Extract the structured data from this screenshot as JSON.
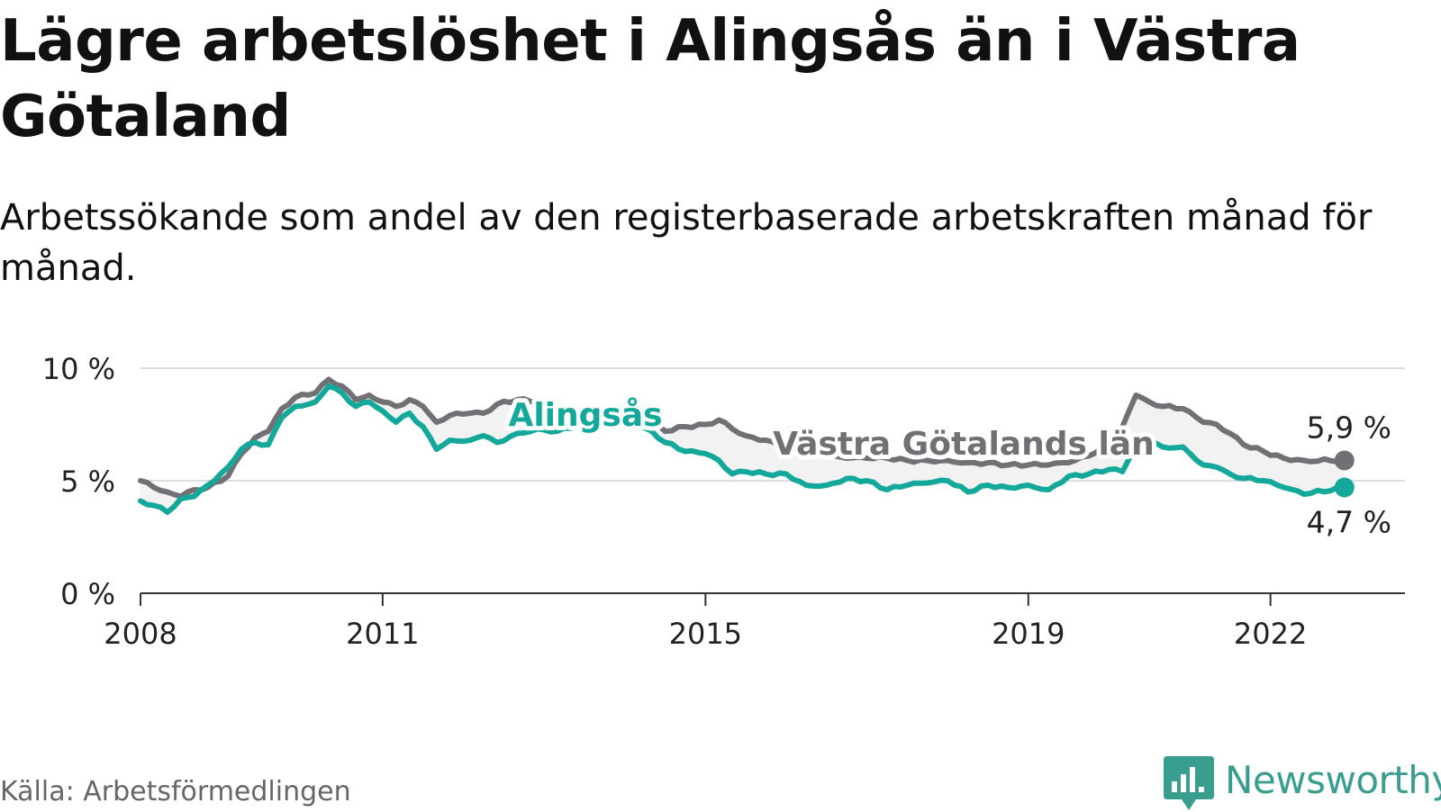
{
  "page": {
    "title": "Lägre arbetslöshet i Alingsås än i Västra Götaland",
    "subtitle": "Arbetssökande som andel av den registerbaserade arbetskraften månad för månad.",
    "source": "Källa: Arbetsförmedlingen",
    "brand": "Newsworthy"
  },
  "colors": {
    "alingsas": "#14a89a",
    "vastra": "#707075",
    "grid": "#dddddd",
    "axis": "#333333",
    "band": "#f2f2f2",
    "brand": "#3a9e8f"
  },
  "icons": {
    "logo": "newsworthy-bar-chart-logo"
  },
  "chart_data": {
    "type": "line",
    "x_start": "2008-01",
    "x_end": "2022-12",
    "xlim": [
      "2008-01",
      "2023-09"
    ],
    "ylim": [
      0,
      10
    ],
    "yticks": [
      0,
      5,
      10
    ],
    "ytick_labels": [
      "0 %",
      "5 %",
      "10 %"
    ],
    "xticks": [
      "2008-01",
      "2011-01",
      "2015-01",
      "2019-01",
      "2022-01"
    ],
    "xtick_labels": [
      "2008",
      "2011",
      "2015",
      "2019",
      "2022"
    ],
    "grid": true,
    "series": [
      {
        "name": "Västra Götalands län",
        "key": "vastra",
        "label_position": "middle",
        "end_label": "5,9 %",
        "keypoints": [
          [
            "2008-01",
            5.0
          ],
          [
            "2008-03",
            4.7
          ],
          [
            "2008-05",
            4.5
          ],
          [
            "2008-07",
            4.3
          ],
          [
            "2008-09",
            4.6
          ],
          [
            "2008-11",
            4.7
          ],
          [
            "2009-02",
            5.2
          ],
          [
            "2009-04",
            6.2
          ],
          [
            "2009-06",
            6.9
          ],
          [
            "2009-08",
            7.2
          ],
          [
            "2009-10",
            8.2
          ],
          [
            "2009-12",
            8.7
          ],
          [
            "2010-03",
            8.9
          ],
          [
            "2010-05",
            9.5
          ],
          [
            "2010-07",
            9.2
          ],
          [
            "2010-09",
            8.6
          ],
          [
            "2010-11",
            8.8
          ],
          [
            "2011-01",
            8.5
          ],
          [
            "2011-03",
            8.3
          ],
          [
            "2011-05",
            8.6
          ],
          [
            "2011-07",
            8.3
          ],
          [
            "2011-09",
            7.6
          ],
          [
            "2011-11",
            7.9
          ],
          [
            "2012-02",
            8.0
          ],
          [
            "2012-04",
            8.0
          ],
          [
            "2012-06",
            8.4
          ],
          [
            "2012-09",
            8.6
          ],
          [
            "2012-12",
            8.5
          ],
          [
            "2013-03",
            8.3
          ],
          [
            "2013-06",
            8.0
          ],
          [
            "2013-09",
            7.9
          ],
          [
            "2013-12",
            8.1
          ],
          [
            "2014-02",
            8.1
          ],
          [
            "2014-05",
            7.6
          ],
          [
            "2014-07",
            7.2
          ],
          [
            "2014-10",
            7.4
          ],
          [
            "2015-01",
            7.5
          ],
          [
            "2015-03",
            7.7
          ],
          [
            "2015-05",
            7.3
          ],
          [
            "2015-07",
            7.0
          ],
          [
            "2015-10",
            6.8
          ],
          [
            "2016-01",
            6.5
          ],
          [
            "2016-04",
            6.2
          ],
          [
            "2016-07",
            6.1
          ],
          [
            "2016-10",
            6.0
          ],
          [
            "2017-01",
            6.0
          ],
          [
            "2017-04",
            6.0
          ],
          [
            "2017-07",
            5.9
          ],
          [
            "2017-10",
            5.9
          ],
          [
            "2018-01",
            5.9
          ],
          [
            "2018-04",
            5.8
          ],
          [
            "2018-07",
            5.8
          ],
          [
            "2018-10",
            5.7
          ],
          [
            "2019-01",
            5.7
          ],
          [
            "2019-04",
            5.7
          ],
          [
            "2019-07",
            5.8
          ],
          [
            "2019-10",
            6.1
          ],
          [
            "2020-01",
            6.6
          ],
          [
            "2020-03",
            7.4
          ],
          [
            "2020-05",
            8.8
          ],
          [
            "2020-07",
            8.5
          ],
          [
            "2020-09",
            8.3
          ],
          [
            "2020-12",
            8.2
          ],
          [
            "2021-03",
            7.6
          ],
          [
            "2021-05",
            7.5
          ],
          [
            "2021-07",
            7.1
          ],
          [
            "2021-09",
            6.6
          ],
          [
            "2021-12",
            6.3
          ],
          [
            "2022-03",
            6.0
          ],
          [
            "2022-06",
            5.9
          ],
          [
            "2022-12",
            5.9
          ]
        ]
      },
      {
        "name": "Alingsås",
        "key": "alingsas",
        "label_position": "upper-left",
        "end_label": "4,7 %",
        "keypoints": [
          [
            "2008-01",
            4.1
          ],
          [
            "2008-03",
            3.9
          ],
          [
            "2008-05",
            3.6
          ],
          [
            "2008-07",
            4.2
          ],
          [
            "2008-09",
            4.3
          ],
          [
            "2008-11",
            4.8
          ],
          [
            "2009-02",
            5.6
          ],
          [
            "2009-04",
            6.4
          ],
          [
            "2009-06",
            6.7
          ],
          [
            "2009-08",
            6.6
          ],
          [
            "2009-10",
            7.8
          ],
          [
            "2009-12",
            8.3
          ],
          [
            "2010-03",
            8.5
          ],
          [
            "2010-05",
            9.2
          ],
          [
            "2010-07",
            8.9
          ],
          [
            "2010-09",
            8.3
          ],
          [
            "2010-11",
            8.5
          ],
          [
            "2011-01",
            8.1
          ],
          [
            "2011-03",
            7.6
          ],
          [
            "2011-05",
            8.0
          ],
          [
            "2011-07",
            7.4
          ],
          [
            "2011-09",
            6.4
          ],
          [
            "2011-11",
            6.8
          ],
          [
            "2012-02",
            6.8
          ],
          [
            "2012-04",
            7.0
          ],
          [
            "2012-06",
            6.7
          ],
          [
            "2012-09",
            7.1
          ],
          [
            "2012-12",
            7.3
          ],
          [
            "2013-03",
            7.2
          ],
          [
            "2013-06",
            7.5
          ],
          [
            "2013-09",
            7.4
          ],
          [
            "2013-12",
            7.6
          ],
          [
            "2014-02",
            7.6
          ],
          [
            "2014-05",
            7.2
          ],
          [
            "2014-07",
            6.7
          ],
          [
            "2014-10",
            6.3
          ],
          [
            "2015-01",
            6.2
          ],
          [
            "2015-03",
            5.9
          ],
          [
            "2015-05",
            5.3
          ],
          [
            "2015-07",
            5.4
          ],
          [
            "2015-10",
            5.3
          ],
          [
            "2016-01",
            5.3
          ],
          [
            "2016-04",
            4.8
          ],
          [
            "2016-07",
            4.8
          ],
          [
            "2016-10",
            5.1
          ],
          [
            "2017-01",
            5.0
          ],
          [
            "2017-04",
            4.6
          ],
          [
            "2017-07",
            4.8
          ],
          [
            "2017-10",
            4.9
          ],
          [
            "2018-01",
            5.0
          ],
          [
            "2018-04",
            4.5
          ],
          [
            "2018-07",
            4.8
          ],
          [
            "2018-10",
            4.7
          ],
          [
            "2019-01",
            4.8
          ],
          [
            "2019-04",
            4.6
          ],
          [
            "2019-07",
            5.2
          ],
          [
            "2019-10",
            5.3
          ],
          [
            "2020-01",
            5.5
          ],
          [
            "2020-03",
            5.4
          ],
          [
            "2020-05",
            6.7
          ],
          [
            "2020-07",
            6.8
          ],
          [
            "2020-09",
            6.5
          ],
          [
            "2020-12",
            6.5
          ],
          [
            "2021-03",
            5.7
          ],
          [
            "2021-05",
            5.6
          ],
          [
            "2021-07",
            5.3
          ],
          [
            "2021-09",
            5.1
          ],
          [
            "2021-12",
            5.0
          ],
          [
            "2022-03",
            4.7
          ],
          [
            "2022-06",
            4.4
          ],
          [
            "2022-12",
            4.7
          ]
        ]
      }
    ]
  }
}
